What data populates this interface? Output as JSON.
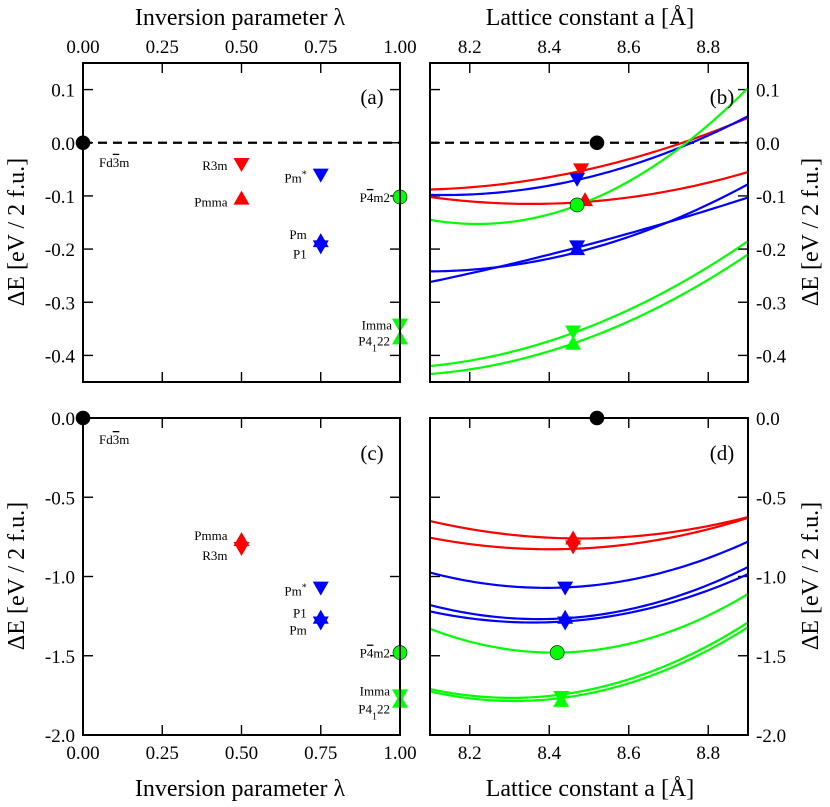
{
  "figure": {
    "top_xlabel_left": "Inversion parameter λ",
    "top_xlabel_right": "Lattice constant a [Å]",
    "bottom_xlabel_left": "Inversion parameter λ",
    "bottom_xlabel_right": "Lattice constant a [Å]",
    "ylabel": "ΔE [eV / 2 f.u.]"
  },
  "colors": {
    "cubic": "#000000",
    "lambda_half": "#ff0000",
    "lambda_three_quarter": "#0000ff",
    "lambda_one": "#00ff00"
  },
  "chart_data": [
    {
      "panel": "a",
      "type": "scatter",
      "label": "(a)",
      "xlabel": "Inversion parameter λ",
      "ylabel": "ΔE [eV / 2 f.u.]",
      "xlim": [
        0,
        1
      ],
      "ylim": [
        -0.45,
        0.15
      ],
      "xticks": [
        "0.00",
        "0.25",
        "0.50",
        "0.75",
        "1.00"
      ],
      "yticks": [
        "0.1",
        "0.0",
        "-0.1",
        "-0.2",
        "-0.3",
        "-0.4"
      ],
      "hline": 0,
      "points": [
        {
          "x": 0.0,
          "y": 0.0,
          "marker": "circle",
          "color": "#000000",
          "label": "Fd3m"
        },
        {
          "x": 0.5,
          "y": -0.04,
          "marker": "tri-down",
          "color": "#ff0000",
          "label": "R3m"
        },
        {
          "x": 0.5,
          "y": -0.105,
          "marker": "tri-up",
          "color": "#ff0000",
          "label": "Pmma"
        },
        {
          "x": 0.75,
          "y": -0.06,
          "marker": "tri-down",
          "color": "#0000ff",
          "label": "Pm*"
        },
        {
          "x": 0.75,
          "y": -0.185,
          "marker": "tri-up",
          "color": "#0000ff",
          "label": "Pm"
        },
        {
          "x": 0.75,
          "y": -0.195,
          "marker": "tri-down",
          "color": "#0000ff",
          "label": "P1"
        },
        {
          "x": 1.0,
          "y": -0.102,
          "marker": "circle",
          "color": "#00ff00",
          "label": "P4m2"
        },
        {
          "x": 1.0,
          "y": -0.342,
          "marker": "tri-down",
          "color": "#00ff00",
          "label": "Imma"
        },
        {
          "x": 1.0,
          "y": -0.368,
          "marker": "tri-up",
          "color": "#00ff00",
          "label": "P4122"
        }
      ]
    },
    {
      "panel": "b",
      "type": "line",
      "label": "(b)",
      "xlabel": "Lattice constant a [Å]",
      "ylabel": "ΔE [eV / 2 f.u.]",
      "xlim": [
        8.1,
        8.9
      ],
      "ylim": [
        -0.45,
        0.15
      ],
      "xticks": [
        "8.2",
        "8.4",
        "8.6",
        "8.8"
      ],
      "yticks": [
        "0.1",
        "0.0",
        "-0.1",
        "-0.2",
        "-0.3",
        "-0.4"
      ],
      "hline": 0,
      "series": [
        {
          "color": "#ff0000",
          "x": [
            8.1,
            8.48,
            8.9
          ],
          "y": [
            -0.088,
            -0.053,
            0.047
          ]
        },
        {
          "color": "#ff0000",
          "x": [
            8.1,
            8.34,
            8.9
          ],
          "y": [
            -0.102,
            -0.115,
            -0.055
          ]
        },
        {
          "color": "#0000ff",
          "x": [
            8.1,
            8.47,
            8.9
          ],
          "y": [
            -0.098,
            -0.07,
            0.05
          ]
        },
        {
          "color": "#0000ff",
          "x": [
            8.1,
            8.5,
            8.9
          ],
          "y": [
            -0.242,
            -0.2,
            -0.078
          ]
        },
        {
          "color": "#0000ff",
          "x": [
            8.1,
            8.47,
            8.9
          ],
          "y": [
            -0.262,
            -0.197,
            -0.103
          ]
        },
        {
          "color": "#00ff00",
          "x": [
            8.1,
            8.47,
            8.9
          ],
          "y": [
            -0.145,
            -0.118,
            0.103
          ]
        },
        {
          "color": "#00ff00",
          "x": [
            8.1,
            8.47,
            8.9
          ],
          "y": [
            -0.42,
            -0.355,
            -0.185
          ]
        },
        {
          "color": "#00ff00",
          "x": [
            8.1,
            8.47,
            8.9
          ],
          "y": [
            -0.435,
            -0.375,
            -0.21
          ]
        }
      ],
      "points": [
        {
          "x": 8.52,
          "y": 0.0,
          "marker": "circle",
          "color": "#000000"
        },
        {
          "x": 8.48,
          "y": -0.05,
          "marker": "tri-down",
          "color": "#ff0000"
        },
        {
          "x": 8.49,
          "y": -0.108,
          "marker": "tri-up",
          "color": "#ff0000"
        },
        {
          "x": 8.47,
          "y": -0.068,
          "marker": "tri-down",
          "color": "#0000ff"
        },
        {
          "x": 8.47,
          "y": -0.195,
          "marker": "tri-down",
          "color": "#0000ff"
        },
        {
          "x": 8.47,
          "y": -0.2,
          "marker": "tri-up",
          "color": "#0000ff"
        },
        {
          "x": 8.47,
          "y": -0.117,
          "marker": "circle",
          "color": "#00ff00"
        },
        {
          "x": 8.46,
          "y": -0.355,
          "marker": "tri-down",
          "color": "#00ff00"
        },
        {
          "x": 8.46,
          "y": -0.378,
          "marker": "tri-up",
          "color": "#00ff00"
        }
      ]
    },
    {
      "panel": "c",
      "type": "scatter",
      "label": "(c)",
      "xlabel": "Inversion parameter λ",
      "ylabel": "ΔE [eV / 2 f.u.]",
      "xlim": [
        0,
        1
      ],
      "ylim": [
        -2.0,
        0.0
      ],
      "xticks": [
        "0.00",
        "0.25",
        "0.50",
        "0.75",
        "1.00"
      ],
      "yticks": [
        "0.0",
        "-0.5",
        "-1.0",
        "-1.5",
        "-2.0"
      ],
      "points": [
        {
          "x": 0.0,
          "y": 0.0,
          "marker": "circle",
          "color": "#000000",
          "label": "Fd3m"
        },
        {
          "x": 0.5,
          "y": -0.77,
          "marker": "tri-up",
          "color": "#ff0000",
          "label": "Pmma"
        },
        {
          "x": 0.5,
          "y": -0.82,
          "marker": "tri-down",
          "color": "#ff0000",
          "label": "R3m"
        },
        {
          "x": 0.75,
          "y": -1.07,
          "marker": "tri-down",
          "color": "#0000ff",
          "label": "Pm*"
        },
        {
          "x": 0.75,
          "y": -1.26,
          "marker": "tri-up",
          "color": "#0000ff",
          "label": "P1"
        },
        {
          "x": 0.75,
          "y": -1.29,
          "marker": "tri-down",
          "color": "#0000ff",
          "label": "Pm"
        },
        {
          "x": 1.0,
          "y": -1.48,
          "marker": "circle",
          "color": "#00ff00",
          "label": "P4m2"
        },
        {
          "x": 1.0,
          "y": -1.75,
          "marker": "tri-down",
          "color": "#00ff00",
          "label": "Imma"
        },
        {
          "x": 1.0,
          "y": -1.79,
          "marker": "tri-up",
          "color": "#00ff00",
          "label": "P4122"
        }
      ]
    },
    {
      "panel": "d",
      "type": "line",
      "label": "(d)",
      "xlabel": "Lattice constant a [Å]",
      "ylabel": "ΔE [eV / 2 f.u.]",
      "xlim": [
        8.1,
        8.9
      ],
      "ylim": [
        -2.0,
        0.0
      ],
      "xticks": [
        "8.2",
        "8.4",
        "8.6",
        "8.8"
      ],
      "yticks": [
        "0.0",
        "-0.5",
        "-1.0",
        "-1.5",
        "-2.0"
      ],
      "series": [
        {
          "color": "#ff0000",
          "x": [
            8.1,
            8.47,
            8.9
          ],
          "y": [
            -0.65,
            -0.76,
            -0.625
          ]
        },
        {
          "color": "#ff0000",
          "x": [
            8.1,
            8.34,
            8.9
          ],
          "y": [
            -0.755,
            -0.825,
            -0.63
          ]
        },
        {
          "color": "#0000ff",
          "x": [
            8.1,
            8.43,
            8.9
          ],
          "y": [
            -0.975,
            -1.07,
            -0.78
          ]
        },
        {
          "color": "#0000ff",
          "x": [
            8.1,
            8.43,
            8.9
          ],
          "y": [
            -1.18,
            -1.265,
            -0.94
          ]
        },
        {
          "color": "#0000ff",
          "x": [
            8.1,
            8.43,
            8.9
          ],
          "y": [
            -1.22,
            -1.285,
            -0.985
          ]
        },
        {
          "color": "#00ff00",
          "x": [
            8.1,
            8.42,
            8.9
          ],
          "y": [
            -1.33,
            -1.48,
            -1.11
          ]
        },
        {
          "color": "#00ff00",
          "x": [
            8.1,
            8.33,
            8.9
          ],
          "y": [
            -1.71,
            -1.765,
            -1.29
          ]
        },
        {
          "color": "#00ff00",
          "x": [
            8.1,
            8.33,
            8.9
          ],
          "y": [
            -1.725,
            -1.785,
            -1.32
          ]
        }
      ],
      "points": [
        {
          "x": 8.52,
          "y": 0.0,
          "marker": "circle",
          "color": "#000000"
        },
        {
          "x": 8.46,
          "y": -0.76,
          "marker": "tri-up",
          "color": "#ff0000"
        },
        {
          "x": 8.46,
          "y": -0.81,
          "marker": "tri-down",
          "color": "#ff0000"
        },
        {
          "x": 8.44,
          "y": -1.07,
          "marker": "tri-down",
          "color": "#0000ff"
        },
        {
          "x": 8.44,
          "y": -1.26,
          "marker": "tri-up",
          "color": "#0000ff"
        },
        {
          "x": 8.44,
          "y": -1.29,
          "marker": "tri-down",
          "color": "#0000ff"
        },
        {
          "x": 8.42,
          "y": -1.48,
          "marker": "circle",
          "color": "#00ff00"
        },
        {
          "x": 8.43,
          "y": -1.76,
          "marker": "tri-down",
          "color": "#00ff00"
        },
        {
          "x": 8.43,
          "y": -1.785,
          "marker": "tri-up",
          "color": "#00ff00"
        }
      ]
    }
  ]
}
